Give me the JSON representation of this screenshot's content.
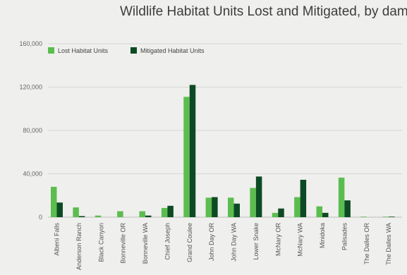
{
  "chart_data": {
    "type": "bar",
    "title": "Wildlife Habitat Units Lost and Mitigated, by dam",
    "xlabel": "",
    "ylabel": "",
    "ylim": [
      0,
      160000
    ],
    "yticks": [
      "0",
      "40,000",
      "80,000",
      "120,000",
      "160,000"
    ],
    "ytick_values": [
      0,
      40000,
      80000,
      120000,
      160000
    ],
    "legend_position": "top-left",
    "grid": true,
    "categories": [
      "Albeni Falls",
      "Anderson Ranch",
      "Black Canyon",
      "Bonneville OR",
      "Bonneville WA",
      "Chief Joseph",
      "Grand Coulee",
      "John Day OR",
      "John Day WA",
      "Lower Snake",
      "McNary OR",
      "McNary WA",
      "Minidoka",
      "Palisades",
      "The Dalles OR",
      "The Dalles WA"
    ],
    "series": [
      {
        "name": "Lost Habitat Units",
        "color": "#5cbd4f",
        "values": [
          28000,
          9000,
          1500,
          5500,
          5500,
          8500,
          111000,
          18000,
          18000,
          27000,
          4000,
          18500,
          10000,
          36500,
          500,
          500
        ]
      },
      {
        "name": "Mitigated Habitat Units",
        "color": "#0d4a24",
        "values": [
          13500,
          1000,
          0,
          0,
          1500,
          10500,
          122000,
          18500,
          12500,
          37500,
          8000,
          34500,
          4000,
          15500,
          0,
          500
        ]
      }
    ]
  }
}
